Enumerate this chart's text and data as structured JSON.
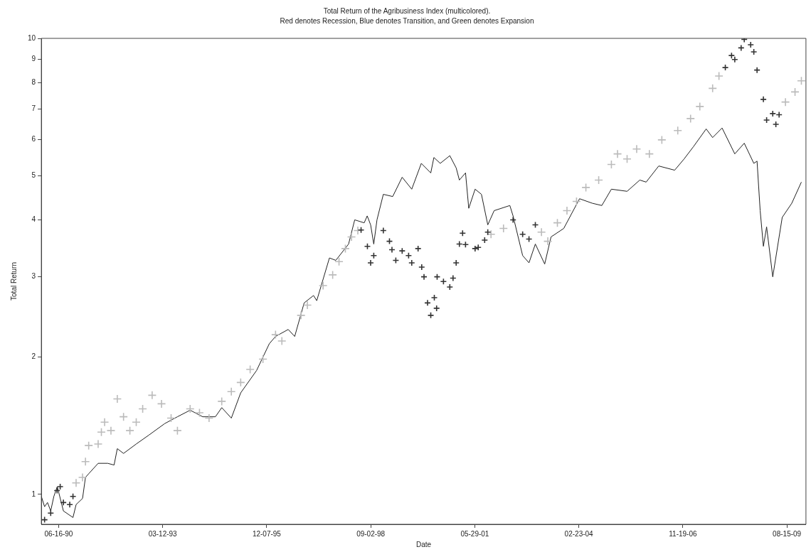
{
  "chart_data": {
    "type": "line",
    "title": "Total Return of the Agribusiness Index (multicolored).",
    "subtitle": "Red denotes Recession, Blue denotes Transition, and Green denotes Expansion",
    "xlabel": "Date",
    "ylabel": "Total Return",
    "log": "y",
    "grid": false,
    "legend": false,
    "xlim": [
      "1990-01-01",
      "2010-02-14"
    ],
    "xticks": [
      {
        "value": "1990-06-16",
        "label": "06-16-90"
      },
      {
        "value": "1993-03-12",
        "label": "03-12-93"
      },
      {
        "value": "1995-12-07",
        "label": "12-07-95"
      },
      {
        "value": "1998-09-02",
        "label": "09-02-98"
      },
      {
        "value": "2001-05-29",
        "label": "05-29-01"
      },
      {
        "value": "2004-02-23",
        "label": "02-23-04"
      },
      {
        "value": "2006-11-19",
        "label": "11-19-06"
      },
      {
        "value": "2009-08-15",
        "label": "08-15-09"
      }
    ],
    "ylim": [
      0.86,
      10
    ],
    "yticks": [
      1,
      2,
      3,
      4,
      5,
      6,
      7,
      8,
      9,
      10
    ],
    "series": [
      {
        "color": "#222222",
        "line_style": "solid",
        "marker": "none",
        "x": [
          "1990-01",
          "1990-02",
          "1990-03",
          "1990-04",
          "1990-05",
          "1990-06-03",
          "1990-06-22",
          "1990-08",
          "1990-11",
          "1990-12",
          "1991-02",
          "1991-03",
          "1991-04",
          "1991-07",
          "1991-10",
          "1991-12",
          "1992-01",
          "1992-03",
          "1992-07",
          "1992-11",
          "1993-04",
          "1993-08",
          "1993-12",
          "1994-04",
          "1994-08",
          "1994-10",
          "1995-01",
          "1995-04",
          "1995-09",
          "1996-01",
          "1996-03",
          "1996-07",
          "1996-09",
          "1996-12",
          "1997-03",
          "1997-04",
          "1997-08",
          "1997-10",
          "1998-02",
          "1998-04",
          "1998-07-01",
          "1998-07-30",
          "1998-09",
          "1998-10",
          "1998-11",
          "1999-01",
          "1999-04",
          "1999-07",
          "1999-10",
          "2000-01",
          "2000-04",
          "2000-05",
          "2000-07",
          "2000-10",
          "2000-12",
          "2001-01",
          "2001-03",
          "2001-04",
          "2001-06",
          "2001-08",
          "2001-10",
          "2001-12",
          "2002-05",
          "2002-06",
          "2002-09",
          "2002-11",
          "2003-01",
          "2003-04",
          "2003-06",
          "2003-10",
          "2004-03",
          "2004-07",
          "2004-10",
          "2005-01",
          "2005-06",
          "2005-10",
          "2005-12",
          "2006-04",
          "2006-09",
          "2006-12",
          "2007-03",
          "2007-07",
          "2007-09",
          "2007-12",
          "2008-04",
          "2008-07",
          "2008-10",
          "2008-11",
          "2008-12",
          "2009-01",
          "2009-02",
          "2009-04",
          "2009-07",
          "2009-10",
          "2010-01"
        ],
        "values": [
          0.99,
          0.94,
          0.96,
          0.92,
          0.99,
          1.04,
          1.0,
          0.92,
          0.89,
          0.95,
          0.98,
          1.09,
          1.11,
          1.17,
          1.17,
          1.16,
          1.26,
          1.23,
          1.29,
          1.35,
          1.43,
          1.48,
          1.53,
          1.48,
          1.48,
          1.55,
          1.47,
          1.67,
          1.87,
          2.14,
          2.22,
          2.3,
          2.22,
          2.63,
          2.73,
          2.66,
          3.3,
          3.26,
          3.54,
          4.0,
          3.94,
          4.08,
          3.9,
          3.54,
          4.0,
          4.55,
          4.5,
          4.96,
          4.67,
          5.32,
          5.07,
          5.48,
          5.32,
          5.53,
          5.2,
          4.89,
          5.07,
          4.24,
          4.67,
          4.55,
          3.9,
          4.19,
          4.3,
          4.08,
          3.34,
          3.22,
          3.54,
          3.2,
          3.67,
          3.83,
          4.45,
          4.35,
          4.3,
          4.67,
          4.62,
          4.89,
          4.84,
          5.25,
          5.14,
          5.44,
          5.79,
          6.33,
          6.06,
          6.36,
          5.58,
          5.89,
          5.32,
          5.38,
          4.19,
          3.5,
          3.86,
          3.0,
          4.05,
          4.35,
          4.84
        ]
      },
      {
        "type": "scatter",
        "color": "#bbbbbb",
        "marker": "cross",
        "x": [
          "1990-12",
          "1991-02",
          "1991-03",
          "1991-04",
          "1991-07",
          "1991-08",
          "1991-09",
          "1991-11",
          "1992-01",
          "1992-03",
          "1992-05",
          "1992-07",
          "1992-09",
          "1992-12",
          "1993-03",
          "1993-06",
          "1993-08",
          "1993-12",
          "1994-03",
          "1994-06",
          "1994-10",
          "1995-01",
          "1995-04",
          "1995-07",
          "1995-11",
          "1996-03",
          "1996-05",
          "1996-11",
          "1997-01",
          "1997-06",
          "1997-09",
          "1997-11",
          "1998-01",
          "1998-03",
          "1998-05",
          "2001-11",
          "2002-03",
          "2003-03",
          "2003-05",
          "2003-08",
          "2003-11",
          "2004-02",
          "2004-05",
          "2004-09",
          "2005-01",
          "2005-03",
          "2005-06",
          "2005-09",
          "2006-01",
          "2006-05",
          "2006-10",
          "2007-02",
          "2007-05",
          "2007-09",
          "2007-11",
          "2009-08",
          "2009-11",
          "2010-01"
        ],
        "values": [
          1.06,
          1.09,
          1.18,
          1.28,
          1.29,
          1.37,
          1.44,
          1.38,
          1.62,
          1.48,
          1.38,
          1.44,
          1.54,
          1.65,
          1.58,
          1.47,
          1.38,
          1.54,
          1.51,
          1.47,
          1.6,
          1.68,
          1.76,
          1.88,
          1.98,
          2.24,
          2.17,
          2.47,
          2.6,
          2.87,
          3.03,
          3.24,
          3.46,
          3.67,
          3.79,
          3.72,
          3.83,
          3.76,
          3.59,
          3.94,
          4.19,
          4.39,
          4.71,
          4.89,
          5.29,
          5.58,
          5.44,
          5.72,
          5.58,
          5.99,
          6.28,
          6.67,
          7.09,
          7.77,
          8.27,
          7.25,
          7.63,
          8.07
        ]
      },
      {
        "type": "scatter",
        "color": "#333333",
        "marker": "cross",
        "x": [
          "1990-02",
          "1990-04",
          "1990-06",
          "1990-07",
          "1990-08",
          "1990-10",
          "1990-11",
          "1998-06",
          "1998-08",
          "1998-09",
          "1998-10",
          "1999-01",
          "1999-03-01",
          "1999-03-25",
          "1999-05",
          "1999-07",
          "1999-09",
          "1999-10",
          "1999-12",
          "2000-01-05",
          "2000-01-27",
          "2000-03",
          "2000-04",
          "2000-05-05",
          "2000-05-27",
          "2000-06",
          "2000-08",
          "2000-10",
          "2000-11",
          "2000-12",
          "2001-01",
          "2001-02",
          "2001-03",
          "2001-06",
          "2001-07",
          "2001-09",
          "2001-10",
          "2002-06",
          "2002-09",
          "2002-11",
          "2003-01",
          "2008-01",
          "2008-03",
          "2008-04",
          "2008-06",
          "2008-07",
          "2008-09",
          "2008-10",
          "2008-11",
          "2009-01",
          "2009-02",
          "2009-04",
          "2009-05",
          "2009-06"
        ],
        "values": [
          0.88,
          0.91,
          1.02,
          1.04,
          0.96,
          0.95,
          0.99,
          3.8,
          3.5,
          3.22,
          3.34,
          3.79,
          3.59,
          3.44,
          3.26,
          3.42,
          3.34,
          3.22,
          3.46,
          3.15,
          3.0,
          2.63,
          2.47,
          2.7,
          2.56,
          3.0,
          2.93,
          2.85,
          2.98,
          3.22,
          3.54,
          3.74,
          3.53,
          3.46,
          3.48,
          3.61,
          3.76,
          4.0,
          3.72,
          3.63,
          3.9,
          8.63,
          9.17,
          8.99,
          9.53,
          9.95,
          9.68,
          9.34,
          8.52,
          7.35,
          6.62,
          6.84,
          6.48,
          6.8
        ]
      }
    ]
  }
}
